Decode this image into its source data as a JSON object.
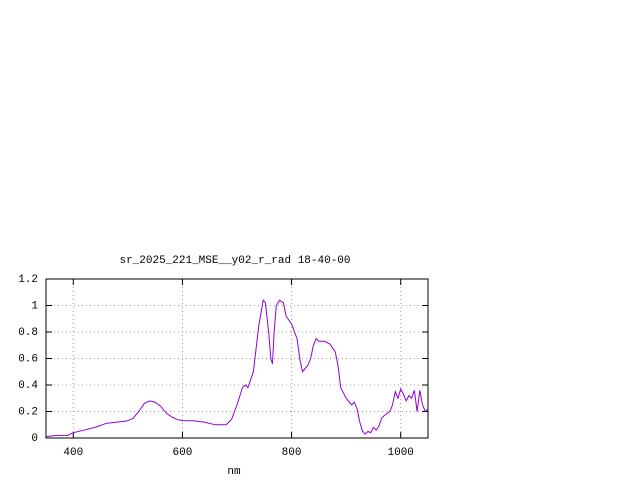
{
  "chart_data": {
    "type": "line",
    "title": "sr_2025_221_MSE__y02_r_rad 18-40-00",
    "x_label": "nm",
    "xlim": [
      350,
      1050
    ],
    "xticks": [
      400,
      600,
      800,
      1000
    ],
    "ylim": [
      0,
      1.2
    ],
    "yticks": [
      0,
      0.2,
      0.4,
      0.6,
      0.8,
      1,
      1.2
    ],
    "grid": true,
    "series": [
      {
        "color": "#9400d3",
        "x": [
          350,
          370,
          390,
          400,
          420,
          440,
          460,
          480,
          500,
          510,
          520,
          530,
          540,
          550,
          560,
          570,
          580,
          590,
          600,
          620,
          640,
          650,
          660,
          680,
          690,
          700,
          710,
          715,
          720,
          730,
          740,
          748,
          752,
          758,
          762,
          765,
          768,
          772,
          778,
          785,
          790,
          800,
          810,
          815,
          820,
          830,
          835,
          840,
          845,
          850,
          860,
          870,
          880,
          885,
          890,
          900,
          910,
          915,
          920,
          925,
          930,
          935,
          940,
          945,
          950,
          955,
          960,
          965,
          970,
          980,
          985,
          990,
          995,
          1000,
          1005,
          1010,
          1015,
          1020,
          1025,
          1030,
          1035,
          1040,
          1045,
          1050
        ],
        "values": [
          0.01,
          0.02,
          0.02,
          0.04,
          0.06,
          0.08,
          0.11,
          0.12,
          0.13,
          0.15,
          0.2,
          0.26,
          0.28,
          0.27,
          0.24,
          0.19,
          0.16,
          0.14,
          0.13,
          0.13,
          0.12,
          0.11,
          0.1,
          0.1,
          0.14,
          0.25,
          0.38,
          0.4,
          0.38,
          0.5,
          0.85,
          1.04,
          1.02,
          0.8,
          0.6,
          0.56,
          0.8,
          1.0,
          1.04,
          1.02,
          0.92,
          0.86,
          0.75,
          0.6,
          0.5,
          0.55,
          0.6,
          0.7,
          0.75,
          0.73,
          0.73,
          0.71,
          0.65,
          0.55,
          0.38,
          0.3,
          0.25,
          0.27,
          0.22,
          0.12,
          0.05,
          0.03,
          0.05,
          0.04,
          0.08,
          0.06,
          0.09,
          0.15,
          0.17,
          0.2,
          0.25,
          0.35,
          0.3,
          0.37,
          0.33,
          0.28,
          0.32,
          0.3,
          0.36,
          0.2,
          0.36,
          0.25,
          0.2,
          0.22
        ]
      }
    ]
  }
}
